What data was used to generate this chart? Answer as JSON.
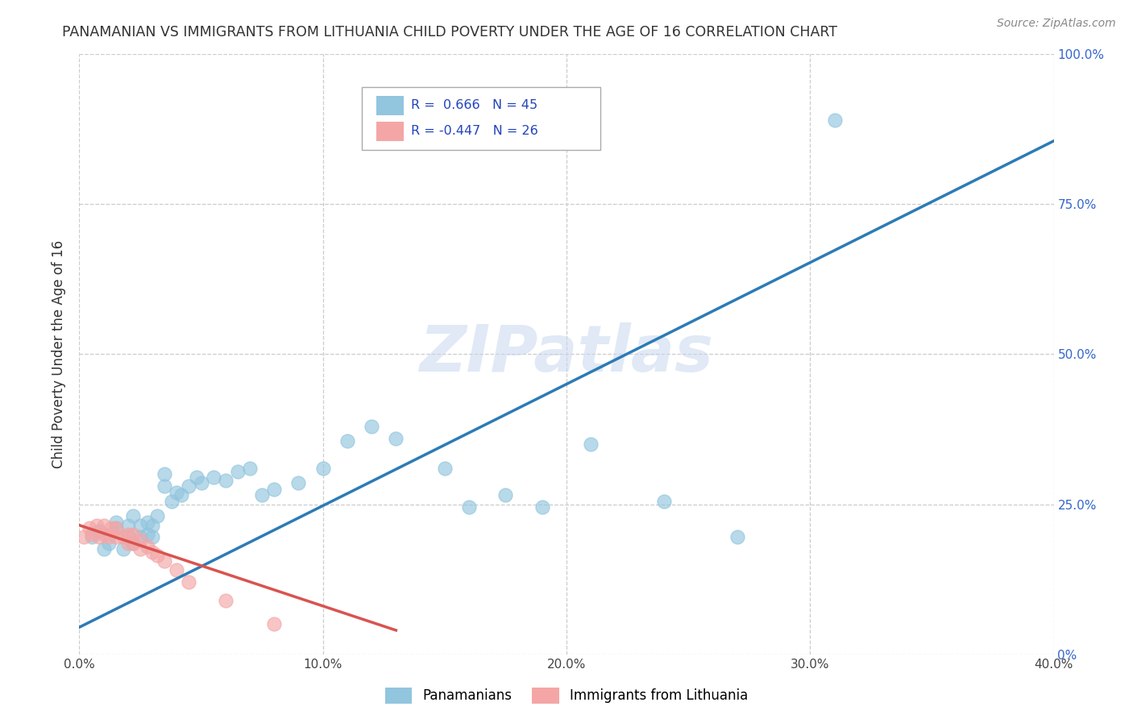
{
  "title": "PANAMANIAN VS IMMIGRANTS FROM LITHUANIA CHILD POVERTY UNDER THE AGE OF 16 CORRELATION CHART",
  "source": "Source: ZipAtlas.com",
  "ylabel": "Child Poverty Under the Age of 16",
  "xlim": [
    0.0,
    0.4
  ],
  "ylim": [
    0.0,
    1.0
  ],
  "xticks": [
    0.0,
    0.1,
    0.2,
    0.3,
    0.4
  ],
  "yticks": [
    0.0,
    0.25,
    0.5,
    0.75,
    1.0
  ],
  "xtick_labels": [
    "0.0%",
    "10.0%",
    "20.0%",
    "30.0%",
    "40.0%"
  ],
  "ytick_labels": [
    "0%",
    "25.0%",
    "50.0%",
    "75.0%",
    "100.0%"
  ],
  "blue_color": "#92c5de",
  "pink_color": "#f4a6a6",
  "blue_line_color": "#2c7bb6",
  "pink_line_color": "#d9534f",
  "blue_R": 0.666,
  "blue_N": 45,
  "pink_R": -0.447,
  "pink_N": 26,
  "legend_labels": [
    "Panamanians",
    "Immigrants from Lithuania"
  ],
  "watermark": "ZIPatlas",
  "blue_line_x0": 0.0,
  "blue_line_y0": 0.045,
  "blue_line_x1": 0.4,
  "blue_line_y1": 0.855,
  "pink_line_x0": 0.0,
  "pink_line_y0": 0.215,
  "pink_line_x1": 0.13,
  "pink_line_y1": 0.04,
  "blue_scatter_x": [
    0.005,
    0.008,
    0.01,
    0.012,
    0.015,
    0.015,
    0.018,
    0.02,
    0.02,
    0.022,
    0.022,
    0.025,
    0.025,
    0.028,
    0.028,
    0.03,
    0.03,
    0.032,
    0.035,
    0.035,
    0.038,
    0.04,
    0.042,
    0.045,
    0.048,
    0.05,
    0.055,
    0.06,
    0.065,
    0.07,
    0.075,
    0.08,
    0.09,
    0.1,
    0.11,
    0.12,
    0.13,
    0.15,
    0.16,
    0.175,
    0.19,
    0.21,
    0.24,
    0.27,
    0.31
  ],
  "blue_scatter_y": [
    0.195,
    0.205,
    0.175,
    0.185,
    0.21,
    0.22,
    0.175,
    0.195,
    0.215,
    0.185,
    0.23,
    0.195,
    0.215,
    0.2,
    0.22,
    0.195,
    0.215,
    0.23,
    0.28,
    0.3,
    0.255,
    0.27,
    0.265,
    0.28,
    0.295,
    0.285,
    0.295,
    0.29,
    0.305,
    0.31,
    0.265,
    0.275,
    0.285,
    0.31,
    0.355,
    0.38,
    0.36,
    0.31,
    0.245,
    0.265,
    0.245,
    0.35,
    0.255,
    0.195,
    0.89
  ],
  "pink_scatter_x": [
    0.002,
    0.004,
    0.005,
    0.007,
    0.008,
    0.01,
    0.01,
    0.012,
    0.013,
    0.015,
    0.015,
    0.018,
    0.02,
    0.02,
    0.022,
    0.022,
    0.025,
    0.025,
    0.028,
    0.03,
    0.032,
    0.035,
    0.04,
    0.045,
    0.06,
    0.08
  ],
  "pink_scatter_y": [
    0.195,
    0.21,
    0.2,
    0.215,
    0.195,
    0.2,
    0.215,
    0.195,
    0.21,
    0.195,
    0.21,
    0.195,
    0.185,
    0.2,
    0.185,
    0.2,
    0.175,
    0.19,
    0.18,
    0.17,
    0.165,
    0.155,
    0.14,
    0.12,
    0.09,
    0.05
  ]
}
